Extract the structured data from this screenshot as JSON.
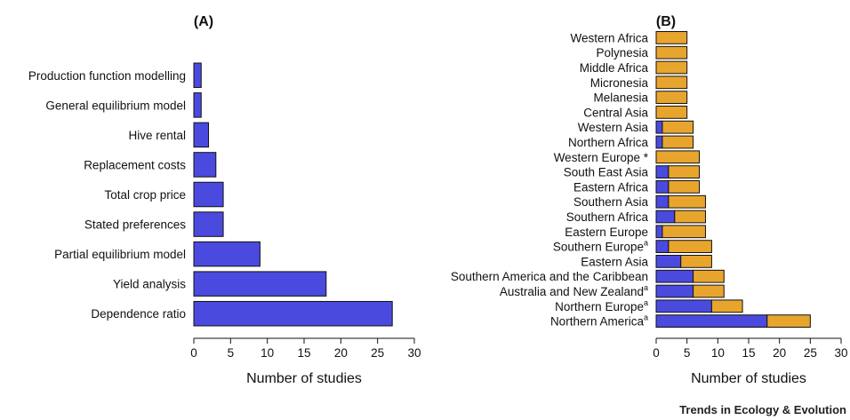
{
  "footer": "Trends in Ecology & Evolution",
  "colors": {
    "blue": "#4a4ade",
    "orange": "#e8a52e",
    "stroke": "#111111"
  },
  "chart_data": [
    {
      "type": "bar",
      "orientation": "horizontal",
      "title": "(A)",
      "xlabel": "Number of studies",
      "ylabel": "",
      "xlim": [
        0,
        30
      ],
      "xticks": [
        0,
        5,
        10,
        15,
        20,
        25,
        30
      ],
      "grid": false,
      "categories": [
        "Production function modelling",
        "General equilibrium model",
        "Hive rental",
        "Replacement costs",
        "Total crop price",
        "Stated preferences",
        "Partial equilibrium model",
        "Yield analysis",
        "Dependence ratio"
      ],
      "values": [
        1,
        1,
        2,
        3,
        4,
        4,
        9,
        18,
        27
      ]
    },
    {
      "type": "bar",
      "orientation": "horizontal",
      "stacked": true,
      "title": "(B)",
      "xlabel": "Number of studies",
      "ylabel": "",
      "xlim": [
        0,
        30
      ],
      "xticks": [
        0,
        5,
        10,
        15,
        20,
        25,
        30
      ],
      "grid": false,
      "categories": [
        {
          "label": "Western Africa",
          "sup": ""
        },
        {
          "label": "Polynesia",
          "sup": ""
        },
        {
          "label": "Middle Africa",
          "sup": ""
        },
        {
          "label": "Micronesia",
          "sup": ""
        },
        {
          "label": "Melanesia",
          "sup": ""
        },
        {
          "label": "Central Asia",
          "sup": ""
        },
        {
          "label": "Western Asia",
          "sup": ""
        },
        {
          "label": "Northern Africa",
          "sup": ""
        },
        {
          "label": "Western Europe *",
          "sup": ""
        },
        {
          "label": "South East Asia",
          "sup": ""
        },
        {
          "label": "Eastern Africa",
          "sup": ""
        },
        {
          "label": "Southern Asia",
          "sup": ""
        },
        {
          "label": "Southern Africa",
          "sup": ""
        },
        {
          "label": "Eastern Europe",
          "sup": ""
        },
        {
          "label": "Southern Europe",
          "sup": "a"
        },
        {
          "label": "Eastern Asia",
          "sup": ""
        },
        {
          "label": "Southern America and the Caribbean",
          "sup": ""
        },
        {
          "label": "Australia and New Zealand",
          "sup": "a"
        },
        {
          "label": "Northern Europe",
          "sup": "a"
        },
        {
          "label": "Northern America",
          "sup": "a"
        }
      ],
      "series": [
        {
          "color": "#4a4ade",
          "values": [
            0,
            0,
            0,
            0,
            0,
            0,
            1,
            1,
            0,
            2,
            2,
            2,
            3,
            1,
            2,
            4,
            6,
            6,
            9,
            18
          ]
        },
        {
          "color": "#e8a52e",
          "values": [
            5,
            5,
            5,
            5,
            5,
            5,
            5,
            5,
            7,
            5,
            5,
            6,
            5,
            7,
            7,
            5,
            5,
            5,
            5,
            7
          ]
        }
      ]
    }
  ]
}
